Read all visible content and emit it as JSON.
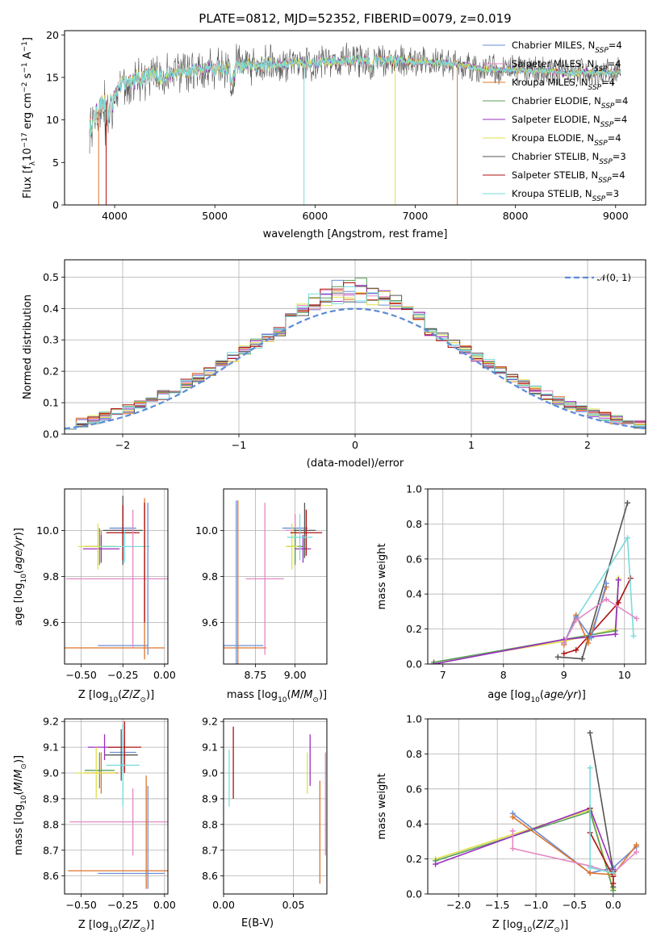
{
  "figure_title": "PLATE=0812, MJD=52352, FIBERID=0079, z=0.019",
  "chart_data": [
    {
      "id": "spectrum",
      "type": "line",
      "xlabel": "wavelength [Angstrom, rest frame]",
      "ylabel": "Flux [f",
      "xlim": [
        3500,
        9300
      ],
      "ylim": [
        0,
        20.5
      ],
      "xticks": [
        4000,
        5000,
        6000,
        7000,
        8000,
        9000
      ],
      "yticks": [
        0,
        5,
        10,
        15,
        20
      ],
      "legend_location": "upper-right",
      "series": [
        {
          "name": "Chabrier MILES, N",
          "nssp": "4",
          "color": "#6a8fd6"
        },
        {
          "name": "Salpeter MILES, N",
          "nssp": "4",
          "color": "#e28ac3"
        },
        {
          "name": "Kroupa MILES, N",
          "nssp": "4",
          "color": "#e0752b"
        },
        {
          "name": "Chabrier ELODIE, N",
          "nssp": "4",
          "color": "#5aa05a"
        },
        {
          "name": "Salpeter ELODIE, N",
          "nssp": "4",
          "color": "#9a2fbf"
        },
        {
          "name": "Kroupa ELODIE, N",
          "nssp": "4",
          "color": "#e0e04a"
        },
        {
          "name": "Chabrier STELIB, N",
          "nssp": "3",
          "color": "#555555"
        },
        {
          "name": "Salpeter STELIB, N",
          "nssp": "4",
          "color": "#b01010"
        },
        {
          "name": "Kroupa STELIB, N",
          "nssp": "3",
          "color": "#7adcdc"
        }
      ],
      "continuum": {
        "x": [
          3750,
          3850,
          3950,
          4050,
          4150,
          4300,
          4500,
          4700,
          4900,
          5100,
          5300,
          5500,
          5700,
          5900,
          6100,
          6300,
          6500,
          6700,
          6900,
          7100,
          7300,
          7500,
          7700,
          7900,
          8100,
          8300,
          8500,
          8700,
          8900,
          9050
        ],
        "y": [
          9.0,
          11.5,
          12.5,
          14.0,
          14.6,
          15.0,
          15.3,
          15.7,
          16.0,
          16.2,
          16.4,
          16.5,
          16.6,
          16.7,
          16.8,
          16.9,
          17.0,
          17.0,
          17.0,
          16.8,
          16.7,
          16.4,
          15.9,
          15.9,
          15.8,
          15.8,
          15.5,
          15.6,
          15.6,
          15.5
        ]
      }
    },
    {
      "id": "residuals",
      "type": "histogram",
      "xlabel": "(data-model)/error",
      "ylabel": "Normed distribution",
      "xlim": [
        -2.5,
        2.5
      ],
      "ylim": [
        0,
        0.555
      ],
      "xticks": [
        -2,
        -1,
        0,
        1,
        2
      ],
      "yticks": [
        0.0,
        0.1,
        0.2,
        0.3,
        0.4,
        0.5
      ],
      "legend": "𝒩(0, 1)",
      "bin_width": 0.1,
      "bin_start": -2.5
    },
    {
      "id": "age_vs_Z",
      "type": "errorbar",
      "xlabel": "Z [log",
      "ylabel": "age  [log",
      "xlim": [
        -0.6,
        0.02
      ],
      "ylim": [
        9.42,
        10.18
      ],
      "xticks": [
        -0.5,
        -0.25,
        0.0
      ],
      "xticklabels": [
        "−0.50",
        "−0.25",
        "0.00"
      ],
      "yticks": [
        9.6,
        9.8,
        10.0
      ],
      "points": [
        {
          "c": 0,
          "x": -0.25,
          "y": 10.01,
          "xe": 0.08,
          "ye": 0.09
        },
        {
          "c": 1,
          "x": -0.25,
          "y": 10.0,
          "xe": 0.06,
          "ye": 0.08
        },
        {
          "c": 2,
          "x": -0.38,
          "y": 9.93,
          "xe": 0.1,
          "ye": 0.07
        },
        {
          "c": 3,
          "x": -0.39,
          "y": 9.93,
          "xe": 0.09,
          "ye": 0.08
        },
        {
          "c": 4,
          "x": -0.38,
          "y": 9.92,
          "xe": 0.11,
          "ye": 0.06
        },
        {
          "c": 5,
          "x": -0.4,
          "y": 9.93,
          "xe": 0.12,
          "ye": 0.1
        },
        {
          "c": 6,
          "x": -0.25,
          "y": 10.0,
          "xe": 0.12,
          "ye": 0.15
        },
        {
          "c": 7,
          "x": -0.25,
          "y": 9.99,
          "xe": 0.1,
          "ye": 0.12
        },
        {
          "c": 8,
          "x": -0.24,
          "y": 9.93,
          "xe": 0.15,
          "ye": 0.07
        },
        {
          "c": 0,
          "x": -0.25,
          "y": 9.5,
          "xe": 0.15,
          "ye": 0.0
        },
        {
          "c": 2,
          "x": -0.3,
          "y": 9.49,
          "xe": 0.3,
          "ye": 0.0
        },
        {
          "c": 2,
          "x": -0.12,
          "y": 9.79,
          "xe": 0.0,
          "ye": 0.35
        },
        {
          "c": 0,
          "x": -0.1,
          "y": 9.79,
          "xe": 0.0,
          "ye": 0.33
        },
        {
          "c": 1,
          "x": -0.19,
          "y": 9.79,
          "xe": 0.4,
          "ye": 0.3
        },
        {
          "c": 7,
          "x": -0.12,
          "y": 9.86,
          "xe": 0.0,
          "ye": 0.26
        }
      ]
    },
    {
      "id": "age_vs_mass",
      "type": "errorbar",
      "xlabel": "mass [log",
      "ylabel": "",
      "xlim": [
        8.55,
        9.2
      ],
      "ylim": [
        9.42,
        10.18
      ],
      "xticks": [
        8.75,
        9.0
      ],
      "xticklabels": [
        "8.75",
        "9.00"
      ],
      "yticks": [
        9.6,
        9.8,
        10.0
      ],
      "points": [
        {
          "c": 0,
          "x": 9.0,
          "y": 10.01,
          "xe": 0.08,
          "ye": 0.06
        },
        {
          "c": 1,
          "x": 9.0,
          "y": 10.0,
          "xe": 0.06,
          "ye": 0.07
        },
        {
          "c": 2,
          "x": 9.0,
          "y": 9.93,
          "xe": 0.05,
          "ye": 0.07
        },
        {
          "c": 3,
          "x": 9.0,
          "y": 9.93,
          "xe": 0.05,
          "ye": 0.08
        },
        {
          "c": 4,
          "x": 9.05,
          "y": 9.92,
          "xe": 0.05,
          "ye": 0.06
        },
        {
          "c": 5,
          "x": 8.98,
          "y": 9.93,
          "xe": 0.04,
          "ye": 0.1
        },
        {
          "c": 6,
          "x": 9.06,
          "y": 10.0,
          "xe": 0.07,
          "ye": 0.12
        },
        {
          "c": 7,
          "x": 9.07,
          "y": 9.99,
          "xe": 0.1,
          "ye": 0.1
        },
        {
          "c": 8,
          "x": 9.03,
          "y": 9.97,
          "xe": 0.08,
          "ye": 0.1
        },
        {
          "c": 0,
          "x": 8.62,
          "y": 9.5,
          "xe": 0.18,
          "ye": 0.0
        },
        {
          "c": 2,
          "x": 8.62,
          "y": 9.49,
          "xe": 0.2,
          "ye": 0.0
        },
        {
          "c": 0,
          "x": 8.63,
          "y": 9.75,
          "xe": 0.0,
          "ye": 0.38
        },
        {
          "c": 2,
          "x": 8.64,
          "y": 9.75,
          "xe": 0.0,
          "ye": 0.38
        },
        {
          "c": 1,
          "x": 8.81,
          "y": 9.79,
          "xe": 0.12,
          "ye": 0.33
        }
      ]
    },
    {
      "id": "massweight_vs_age",
      "type": "line",
      "xlabel": "age  [log",
      "ylabel": "mass weight",
      "xlim": [
        6.75,
        10.35
      ],
      "ylim": [
        0,
        1.0
      ],
      "xticks": [
        7,
        8,
        9,
        10
      ],
      "yticks": [
        0.0,
        0.2,
        0.4,
        0.6,
        0.8,
        1.0
      ],
      "series": [
        {
          "c": 5,
          "x": [
            6.85,
            9.0,
            9.85,
            9.9
          ],
          "y": [
            0.01,
            0.13,
            0.2,
            0.49
          ]
        },
        {
          "c": 3,
          "x": [
            6.85,
            9.0,
            9.85,
            9.9
          ],
          "y": [
            0.01,
            0.14,
            0.19,
            0.48
          ]
        },
        {
          "c": 4,
          "x": [
            6.85,
            9.0,
            9.85,
            9.9
          ],
          "y": [
            0.0,
            0.14,
            0.17,
            0.48
          ]
        },
        {
          "c": 7,
          "x": [
            9.0,
            9.2,
            9.9,
            10.1
          ],
          "y": [
            0.06,
            0.08,
            0.35,
            0.49
          ]
        },
        {
          "c": 6,
          "x": [
            8.9,
            9.3,
            10.05
          ],
          "y": [
            0.04,
            0.03,
            0.92
          ]
        },
        {
          "c": 8,
          "x": [
            9.0,
            9.2,
            10.05,
            10.15
          ],
          "y": [
            0.12,
            0.26,
            0.72,
            0.16
          ]
        },
        {
          "c": 2,
          "x": [
            9.0,
            9.2,
            9.4,
            9.7
          ],
          "y": [
            0.11,
            0.28,
            0.12,
            0.44
          ]
        },
        {
          "c": 0,
          "x": [
            9.0,
            9.2,
            9.45,
            9.7
          ],
          "y": [
            0.12,
            0.27,
            0.15,
            0.46
          ]
        },
        {
          "c": 1,
          "x": [
            9.0,
            9.2,
            9.7,
            10.2
          ],
          "y": [
            0.12,
            0.25,
            0.37,
            0.26
          ]
        }
      ]
    },
    {
      "id": "mass_vs_Z",
      "type": "errorbar",
      "xlabel": "Z [log",
      "ylabel": "mass [log",
      "xlim": [
        -0.6,
        0.02
      ],
      "ylim": [
        8.53,
        9.21
      ],
      "xticks": [
        -0.5,
        -0.25,
        0.0
      ],
      "xticklabels": [
        "−0.50",
        "−0.25",
        "0.00"
      ],
      "yticks": [
        8.6,
        8.7,
        8.8,
        8.9,
        9.0,
        9.1,
        9.2
      ],
      "points": [
        {
          "c": 0,
          "x": -0.25,
          "y": 9.08,
          "xe": 0.08,
          "ye": 0.07
        },
        {
          "c": 1,
          "x": -0.24,
          "y": 9.07,
          "xe": 0.06,
          "ye": 0.06
        },
        {
          "c": 2,
          "x": -0.38,
          "y": 9.0,
          "xe": 0.1,
          "ye": 0.08
        },
        {
          "c": 3,
          "x": -0.39,
          "y": 9.01,
          "xe": 0.09,
          "ye": 0.07
        },
        {
          "c": 4,
          "x": -0.36,
          "y": 9.1,
          "xe": 0.1,
          "ye": 0.05
        },
        {
          "c": 5,
          "x": -0.41,
          "y": 9.0,
          "xe": 0.12,
          "ye": 0.1
        },
        {
          "c": 6,
          "x": -0.26,
          "y": 9.07,
          "xe": 0.1,
          "ye": 0.1
        },
        {
          "c": 7,
          "x": -0.24,
          "y": 9.1,
          "xe": 0.1,
          "ye": 0.1
        },
        {
          "c": 8,
          "x": -0.25,
          "y": 9.03,
          "xe": 0.1,
          "ye": 0.16
        },
        {
          "c": 1,
          "x": -0.19,
          "y": 8.81,
          "xe": 0.38,
          "ye": 0.13
        },
        {
          "c": 2,
          "x": -0.11,
          "y": 8.77,
          "xe": 0.0,
          "ye": 0.22
        },
        {
          "c": 2,
          "x": -0.28,
          "y": 8.62,
          "xe": 0.3,
          "ye": 0.0
        },
        {
          "c": 0,
          "x": -0.2,
          "y": 8.61,
          "xe": 0.2,
          "ye": 0.0
        },
        {
          "c": 0,
          "x": -0.1,
          "y": 8.75,
          "xe": 0.0,
          "ye": 0.2
        }
      ]
    },
    {
      "id": "mass_vs_EBV",
      "type": "errorbar",
      "xlabel": "E(B-V)",
      "ylabel": "",
      "xlim": [
        0.0,
        0.074
      ],
      "ylim": [
        8.53,
        9.21
      ],
      "xticks": [
        0.0,
        0.05
      ],
      "xticklabels": [
        "0.00",
        "0.05"
      ],
      "yticks": [
        8.6,
        8.7,
        8.8,
        8.9,
        9.0,
        9.1,
        9.2
      ],
      "points": [
        {
          "c": 8,
          "x": 0.004,
          "y": 8.98,
          "xe": 0.0,
          "ye": 0.11
        },
        {
          "c": 7,
          "x": 0.007,
          "y": 9.04,
          "xe": 0.0,
          "ye": 0.14
        },
        {
          "c": 5,
          "x": 0.06,
          "y": 9.0,
          "xe": 0.0,
          "ye": 0.08
        },
        {
          "c": 4,
          "x": 0.062,
          "y": 9.05,
          "xe": 0.0,
          "ye": 0.1
        },
        {
          "c": 2,
          "x": 0.069,
          "y": 8.77,
          "xe": 0.0,
          "ye": 0.2
        },
        {
          "c": 1,
          "x": 0.073,
          "y": 8.88,
          "xe": 0.0,
          "ye": 0.2
        }
      ]
    },
    {
      "id": "massweight_vs_Z",
      "type": "line",
      "xlabel": "Z [log",
      "ylabel": "mass weight",
      "xlim": [
        -2.4,
        0.42
      ],
      "ylim": [
        0,
        1.0
      ],
      "xticks": [
        -2.0,
        -1.5,
        -1.0,
        -0.5,
        0.0
      ],
      "xticklabels": [
        "−2.0",
        "−1.5",
        "−1.0",
        "−0.5",
        "0.0"
      ],
      "yticks": [
        0.0,
        0.2,
        0.4,
        0.6,
        0.8,
        1.0
      ],
      "series": [
        {
          "c": 5,
          "x": [
            -2.3,
            -0.3,
            0.0
          ],
          "y": [
            0.2,
            0.48,
            0.03
          ]
        },
        {
          "c": 3,
          "x": [
            -2.3,
            -0.3,
            0.0
          ],
          "y": [
            0.19,
            0.47,
            0.02
          ]
        },
        {
          "c": 4,
          "x": [
            -2.3,
            -0.3,
            0.0
          ],
          "y": [
            0.17,
            0.49,
            0.14
          ]
        },
        {
          "c": 0,
          "x": [
            -1.3,
            -0.3,
            0.0,
            0.3
          ],
          "y": [
            0.46,
            0.12,
            0.15,
            0.27
          ]
        },
        {
          "c": 2,
          "x": [
            -1.3,
            -0.3,
            0.0,
            0.3
          ],
          "y": [
            0.44,
            0.12,
            0.11,
            0.28
          ]
        },
        {
          "c": 1,
          "x": [
            -1.3,
            -1.3,
            -0.3,
            0.0,
            0.3
          ],
          "y": [
            0.36,
            0.26,
            0.16,
            0.12,
            0.24
          ]
        },
        {
          "c": 6,
          "x": [
            -0.3,
            0.0,
            0.0
          ],
          "y": [
            0.92,
            0.13,
            0.04
          ]
        },
        {
          "c": 7,
          "x": [
            -0.3,
            -0.3,
            0.0,
            0.0
          ],
          "y": [
            0.49,
            0.35,
            0.1,
            0.06
          ]
        },
        {
          "c": 8,
          "x": [
            -0.3,
            -0.3,
            0.0
          ],
          "y": [
            0.72,
            0.15,
            0.12
          ]
        }
      ]
    }
  ]
}
